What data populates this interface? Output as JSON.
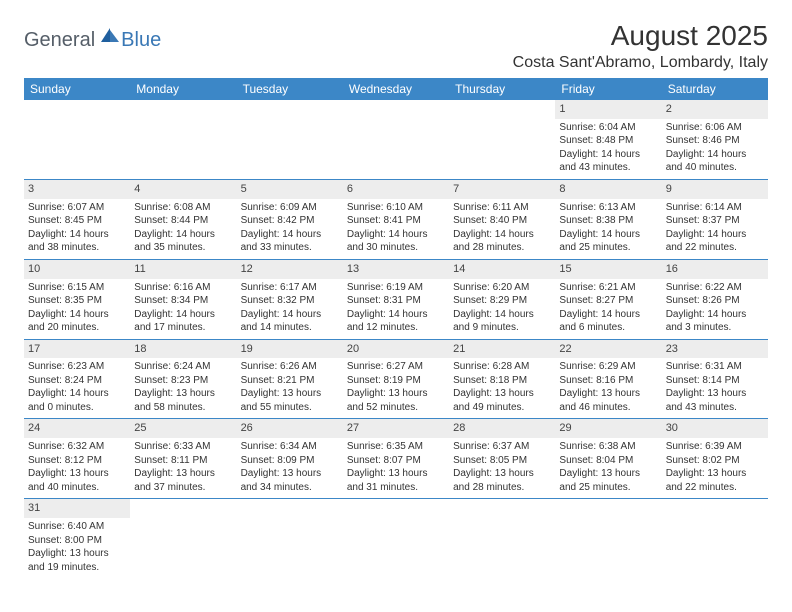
{
  "logo": {
    "general": "General",
    "blue": "Blue"
  },
  "title": "August 2025",
  "location": "Costa Sant'Abramo, Lombardy, Italy",
  "colors": {
    "header_bg": "#3c87c7",
    "header_text": "#ffffff",
    "daynum_bg": "#ededed",
    "row_border": "#3c87c7",
    "logo_general": "#555e68",
    "logo_blue": "#3a78b5"
  },
  "dayNames": [
    "Sunday",
    "Monday",
    "Tuesday",
    "Wednesday",
    "Thursday",
    "Friday",
    "Saturday"
  ],
  "weeks": [
    [
      {
        "n": "",
        "sr": "",
        "ss": "",
        "dl": ""
      },
      {
        "n": "",
        "sr": "",
        "ss": "",
        "dl": ""
      },
      {
        "n": "",
        "sr": "",
        "ss": "",
        "dl": ""
      },
      {
        "n": "",
        "sr": "",
        "ss": "",
        "dl": ""
      },
      {
        "n": "",
        "sr": "",
        "ss": "",
        "dl": ""
      },
      {
        "n": "1",
        "sr": "Sunrise: 6:04 AM",
        "ss": "Sunset: 8:48 PM",
        "dl": "Daylight: 14 hours and 43 minutes."
      },
      {
        "n": "2",
        "sr": "Sunrise: 6:06 AM",
        "ss": "Sunset: 8:46 PM",
        "dl": "Daylight: 14 hours and 40 minutes."
      }
    ],
    [
      {
        "n": "3",
        "sr": "Sunrise: 6:07 AM",
        "ss": "Sunset: 8:45 PM",
        "dl": "Daylight: 14 hours and 38 minutes."
      },
      {
        "n": "4",
        "sr": "Sunrise: 6:08 AM",
        "ss": "Sunset: 8:44 PM",
        "dl": "Daylight: 14 hours and 35 minutes."
      },
      {
        "n": "5",
        "sr": "Sunrise: 6:09 AM",
        "ss": "Sunset: 8:42 PM",
        "dl": "Daylight: 14 hours and 33 minutes."
      },
      {
        "n": "6",
        "sr": "Sunrise: 6:10 AM",
        "ss": "Sunset: 8:41 PM",
        "dl": "Daylight: 14 hours and 30 minutes."
      },
      {
        "n": "7",
        "sr": "Sunrise: 6:11 AM",
        "ss": "Sunset: 8:40 PM",
        "dl": "Daylight: 14 hours and 28 minutes."
      },
      {
        "n": "8",
        "sr": "Sunrise: 6:13 AM",
        "ss": "Sunset: 8:38 PM",
        "dl": "Daylight: 14 hours and 25 minutes."
      },
      {
        "n": "9",
        "sr": "Sunrise: 6:14 AM",
        "ss": "Sunset: 8:37 PM",
        "dl": "Daylight: 14 hours and 22 minutes."
      }
    ],
    [
      {
        "n": "10",
        "sr": "Sunrise: 6:15 AM",
        "ss": "Sunset: 8:35 PM",
        "dl": "Daylight: 14 hours and 20 minutes."
      },
      {
        "n": "11",
        "sr": "Sunrise: 6:16 AM",
        "ss": "Sunset: 8:34 PM",
        "dl": "Daylight: 14 hours and 17 minutes."
      },
      {
        "n": "12",
        "sr": "Sunrise: 6:17 AM",
        "ss": "Sunset: 8:32 PM",
        "dl": "Daylight: 14 hours and 14 minutes."
      },
      {
        "n": "13",
        "sr": "Sunrise: 6:19 AM",
        "ss": "Sunset: 8:31 PM",
        "dl": "Daylight: 14 hours and 12 minutes."
      },
      {
        "n": "14",
        "sr": "Sunrise: 6:20 AM",
        "ss": "Sunset: 8:29 PM",
        "dl": "Daylight: 14 hours and 9 minutes."
      },
      {
        "n": "15",
        "sr": "Sunrise: 6:21 AM",
        "ss": "Sunset: 8:27 PM",
        "dl": "Daylight: 14 hours and 6 minutes."
      },
      {
        "n": "16",
        "sr": "Sunrise: 6:22 AM",
        "ss": "Sunset: 8:26 PM",
        "dl": "Daylight: 14 hours and 3 minutes."
      }
    ],
    [
      {
        "n": "17",
        "sr": "Sunrise: 6:23 AM",
        "ss": "Sunset: 8:24 PM",
        "dl": "Daylight: 14 hours and 0 minutes."
      },
      {
        "n": "18",
        "sr": "Sunrise: 6:24 AM",
        "ss": "Sunset: 8:23 PM",
        "dl": "Daylight: 13 hours and 58 minutes."
      },
      {
        "n": "19",
        "sr": "Sunrise: 6:26 AM",
        "ss": "Sunset: 8:21 PM",
        "dl": "Daylight: 13 hours and 55 minutes."
      },
      {
        "n": "20",
        "sr": "Sunrise: 6:27 AM",
        "ss": "Sunset: 8:19 PM",
        "dl": "Daylight: 13 hours and 52 minutes."
      },
      {
        "n": "21",
        "sr": "Sunrise: 6:28 AM",
        "ss": "Sunset: 8:18 PM",
        "dl": "Daylight: 13 hours and 49 minutes."
      },
      {
        "n": "22",
        "sr": "Sunrise: 6:29 AM",
        "ss": "Sunset: 8:16 PM",
        "dl": "Daylight: 13 hours and 46 minutes."
      },
      {
        "n": "23",
        "sr": "Sunrise: 6:31 AM",
        "ss": "Sunset: 8:14 PM",
        "dl": "Daylight: 13 hours and 43 minutes."
      }
    ],
    [
      {
        "n": "24",
        "sr": "Sunrise: 6:32 AM",
        "ss": "Sunset: 8:12 PM",
        "dl": "Daylight: 13 hours and 40 minutes."
      },
      {
        "n": "25",
        "sr": "Sunrise: 6:33 AM",
        "ss": "Sunset: 8:11 PM",
        "dl": "Daylight: 13 hours and 37 minutes."
      },
      {
        "n": "26",
        "sr": "Sunrise: 6:34 AM",
        "ss": "Sunset: 8:09 PM",
        "dl": "Daylight: 13 hours and 34 minutes."
      },
      {
        "n": "27",
        "sr": "Sunrise: 6:35 AM",
        "ss": "Sunset: 8:07 PM",
        "dl": "Daylight: 13 hours and 31 minutes."
      },
      {
        "n": "28",
        "sr": "Sunrise: 6:37 AM",
        "ss": "Sunset: 8:05 PM",
        "dl": "Daylight: 13 hours and 28 minutes."
      },
      {
        "n": "29",
        "sr": "Sunrise: 6:38 AM",
        "ss": "Sunset: 8:04 PM",
        "dl": "Daylight: 13 hours and 25 minutes."
      },
      {
        "n": "30",
        "sr": "Sunrise: 6:39 AM",
        "ss": "Sunset: 8:02 PM",
        "dl": "Daylight: 13 hours and 22 minutes."
      }
    ],
    [
      {
        "n": "31",
        "sr": "Sunrise: 6:40 AM",
        "ss": "Sunset: 8:00 PM",
        "dl": "Daylight: 13 hours and 19 minutes."
      },
      {
        "n": "",
        "sr": "",
        "ss": "",
        "dl": ""
      },
      {
        "n": "",
        "sr": "",
        "ss": "",
        "dl": ""
      },
      {
        "n": "",
        "sr": "",
        "ss": "",
        "dl": ""
      },
      {
        "n": "",
        "sr": "",
        "ss": "",
        "dl": ""
      },
      {
        "n": "",
        "sr": "",
        "ss": "",
        "dl": ""
      },
      {
        "n": "",
        "sr": "",
        "ss": "",
        "dl": ""
      }
    ]
  ]
}
